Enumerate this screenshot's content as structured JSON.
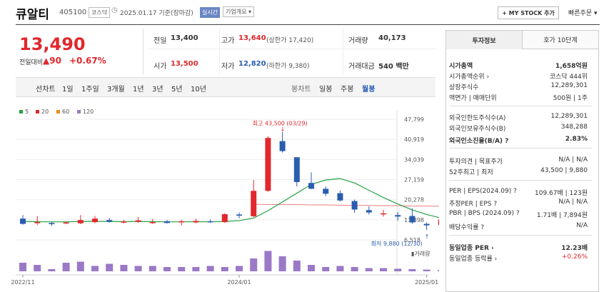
{
  "header": {
    "name": "큐알티",
    "code": "405100",
    "market": "코스닥",
    "date": "2025.01.17 기준(장마감)",
    "realtime": "실시간",
    "company": "기업개요 ▾",
    "mystock": "+ MY STOCK 추가",
    "quick": "빠른주문 ▾"
  },
  "price": {
    "current": "13,490",
    "change_label": "전일대비",
    "change": "▲90",
    "change_pct": "+0.67%"
  },
  "quote": {
    "prev_label": "전일",
    "prev": "13,400",
    "high_label": "고가",
    "high": "13,640",
    "high_limit": "(상한가 17,420)",
    "volume_label": "거래량",
    "volume": "40,173",
    "open_label": "시가",
    "open": "13,500",
    "low_label": "저가",
    "low": "12,820",
    "low_limit": "(하한가 9,380)",
    "amount_label": "거래대금",
    "amount": "540 백만"
  },
  "periods": {
    "line_label": "선차트",
    "line": [
      "1일",
      "1주일",
      "3개월",
      "1년",
      "3년",
      "5년",
      "10년"
    ],
    "candle_label": "봉차트",
    "candle": [
      "일봉",
      "주봉",
      "월봉"
    ],
    "selected": "월봉"
  },
  "chart_data": {
    "type": "candlestick",
    "legend": [
      {
        "name": "5",
        "color": "#27a243"
      },
      {
        "name": "20",
        "color": "#e0282d"
      },
      {
        "name": "60",
        "color": "#ef8b1a"
      },
      {
        "name": "120",
        "color": "#9b79c6"
      }
    ],
    "y_ticks": [
      "47,799",
      "40,919",
      "34,039",
      "27,159",
      "20,278",
      "13,398",
      "6,518"
    ],
    "ylim": [
      6518,
      47799
    ],
    "x_ticks": [
      "2022/11",
      "2024/01",
      "2025/01"
    ],
    "high_label": "최고 43,500 (03/29)",
    "low_label": "최저 9,880 (12/30)",
    "volume_label": "거래량",
    "candles": [
      {
        "o": 13800,
        "h": 15000,
        "l": 11700,
        "c": 12000
      },
      {
        "o": 12300,
        "h": 14600,
        "l": 11600,
        "c": 12600
      },
      {
        "o": 12300,
        "h": 12600,
        "l": 11300,
        "c": 11900
      },
      {
        "o": 12300,
        "h": 12600,
        "l": 11900,
        "c": 12500
      },
      {
        "o": 12200,
        "h": 15000,
        "l": 11900,
        "c": 13300
      },
      {
        "o": 12600,
        "h": 14700,
        "l": 12200,
        "c": 13800
      },
      {
        "o": 13300,
        "h": 14000,
        "l": 12400,
        "c": 12700
      },
      {
        "o": 12700,
        "h": 13400,
        "l": 12200,
        "c": 12800
      },
      {
        "o": 12700,
        "h": 14300,
        "l": 12400,
        "c": 13200
      },
      {
        "o": 12600,
        "h": 13700,
        "l": 12000,
        "c": 12600
      },
      {
        "o": 12900,
        "h": 13300,
        "l": 12100,
        "c": 12300
      },
      {
        "o": 12600,
        "h": 13400,
        "l": 11500,
        "c": 12900
      },
      {
        "o": 12500,
        "h": 13800,
        "l": 12200,
        "c": 13000
      },
      {
        "o": 12900,
        "h": 13500,
        "l": 12300,
        "c": 12600
      },
      {
        "o": 12600,
        "h": 15600,
        "l": 12300,
        "c": 15300
      },
      {
        "o": 15200,
        "h": 15900,
        "l": 13900,
        "c": 14800
      },
      {
        "o": 14600,
        "h": 27000,
        "l": 14300,
        "c": 23300
      },
      {
        "o": 23300,
        "h": 42000,
        "l": 23000,
        "c": 41400
      },
      {
        "o": 40300,
        "h": 43500,
        "l": 36400,
        "c": 36900
      },
      {
        "o": 34800,
        "h": 34800,
        "l": 24800,
        "c": 26300
      },
      {
        "o": 26000,
        "h": 29600,
        "l": 23900,
        "c": 24000
      },
      {
        "o": 24000,
        "h": 24800,
        "l": 21500,
        "c": 22300
      },
      {
        "o": 22500,
        "h": 23400,
        "l": 19600,
        "c": 20000
      },
      {
        "o": 19800,
        "h": 20300,
        "l": 15800,
        "c": 16900
      },
      {
        "o": 16700,
        "h": 18000,
        "l": 15200,
        "c": 15900
      },
      {
        "o": 15600,
        "h": 16800,
        "l": 14500,
        "c": 15600
      },
      {
        "o": 15000,
        "h": 16000,
        "l": 13100,
        "c": 14500
      },
      {
        "o": 14700,
        "h": 17300,
        "l": 12000,
        "c": 12500
      },
      {
        "o": 12000,
        "h": 12500,
        "l": 9880,
        "c": 11500
      },
      {
        "o": 11600,
        "h": 13640,
        "l": 11300,
        "c": 13490
      }
    ],
    "ma20": [
      12800,
      12750,
      12700,
      12700,
      12800,
      12850,
      12800,
      12750,
      12800,
      12750,
      12700,
      12700,
      12750,
      12700,
      12800,
      13100,
      14000,
      16500,
      19500,
      22500,
      25500,
      27000,
      27500,
      26000,
      23500,
      21000,
      18800,
      16800,
      15200,
      14000
    ],
    "ma_red_from": 16,
    "ma_red": [
      18700,
      18600,
      18600,
      18600,
      18500,
      18500,
      18400,
      18300,
      18300,
      18200,
      18200,
      18100,
      18100,
      18000
    ],
    "volume": [
      40,
      30,
      10,
      40,
      45,
      25,
      35,
      30,
      25,
      25,
      20,
      20,
      20,
      25,
      20,
      25,
      60,
      95,
      70,
      50,
      30,
      20,
      25,
      20,
      15,
      15,
      12,
      10,
      8,
      6
    ]
  },
  "info": {
    "tab_invest": "투자정보",
    "tab_order": "호가 10단계",
    "rows": [
      {
        "l": "시가총액",
        "v": "1,658억원",
        "bold": true
      },
      {
        "l": "시가총액순위 ›",
        "v": "코스닥 444위"
      },
      {
        "l": "상장주식수",
        "v": "12,289,301"
      },
      {
        "l": "액면가 | 매매단위",
        "v": "500원 | 1주"
      },
      {
        "l": "외국인한도주식수(A)",
        "v": "12,289,301"
      },
      {
        "l": "외국인보유주식수(B)",
        "v": "348,288"
      },
      {
        "l": "외국인소진율(B/A) ?",
        "v": "2.83%",
        "bold": true
      },
      {
        "l": "투자의견 | 목표주가",
        "v": "N/A | N/A"
      },
      {
        "l": "52주최고 | 최저",
        "v": "43,500 | 9,880"
      },
      {
        "l": "PER | EPS(2024.09) ?",
        "v": "109.67배 | 123원"
      },
      {
        "l": "추정PER | EPS ?",
        "v": "N/A | N/A"
      },
      {
        "l": "PBR | BPS (2024.09) ?",
        "v": "1.71배 | 7,894원"
      },
      {
        "l": "배당수익률 ?",
        "v": "N/A"
      },
      {
        "l": "동일업종 PER ›",
        "v": "12.23배",
        "bold": true
      },
      {
        "l": "동일업종 등락률 ›",
        "v": "+0.26%",
        "red": true
      }
    ]
  }
}
